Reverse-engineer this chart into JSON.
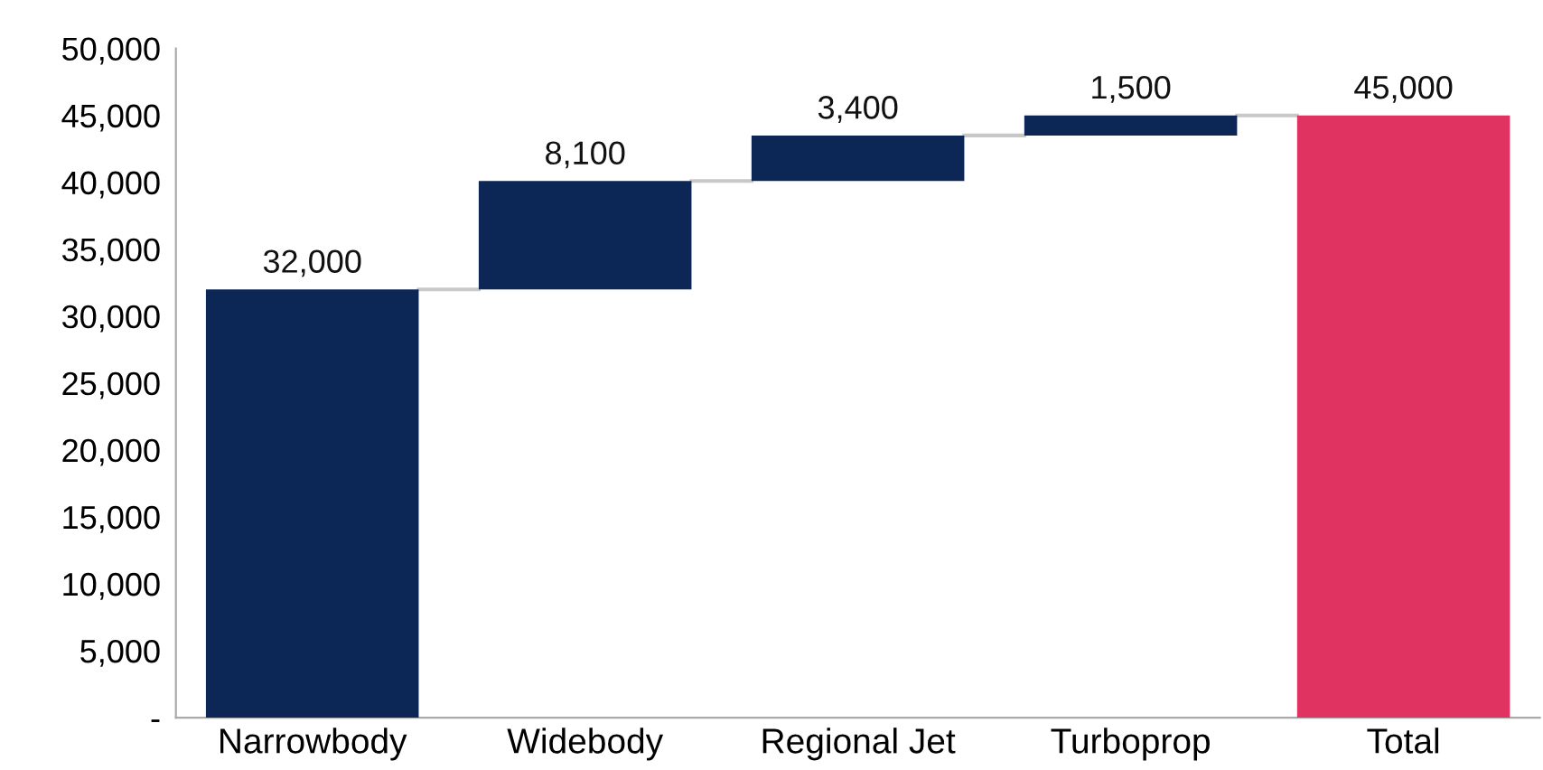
{
  "chart_data": {
    "type": "bar",
    "categories": [
      "Narrowbody",
      "Widebody",
      "Regional Jet",
      "Turboprop",
      "Total"
    ],
    "values": [
      32000,
      8100,
      3400,
      1500,
      45000
    ],
    "base": [
      0,
      32000,
      40100,
      43500,
      0
    ],
    "colors": [
      "#0c2756",
      "#0c2756",
      "#0c2756",
      "#0c2756",
      "#e03361"
    ],
    "value_labels": [
      "32,000",
      "8,100",
      "3,400",
      "1,500",
      "45,000"
    ],
    "ylim": [
      0,
      50000
    ],
    "yticks": [
      {
        "value": 0,
        "label": "-"
      },
      {
        "value": 5000,
        "label": "5,000"
      },
      {
        "value": 10000,
        "label": "10,000"
      },
      {
        "value": 15000,
        "label": "15,000"
      },
      {
        "value": 20000,
        "label": "20,000"
      },
      {
        "value": 25000,
        "label": "25,000"
      },
      {
        "value": 30000,
        "label": "30,000"
      },
      {
        "value": 35000,
        "label": "35,000"
      },
      {
        "value": 40000,
        "label": "40,000"
      },
      {
        "value": 45000,
        "label": "45,000"
      },
      {
        "value": 50000,
        "label": "50,000"
      }
    ],
    "grid": false,
    "legend": false
  }
}
